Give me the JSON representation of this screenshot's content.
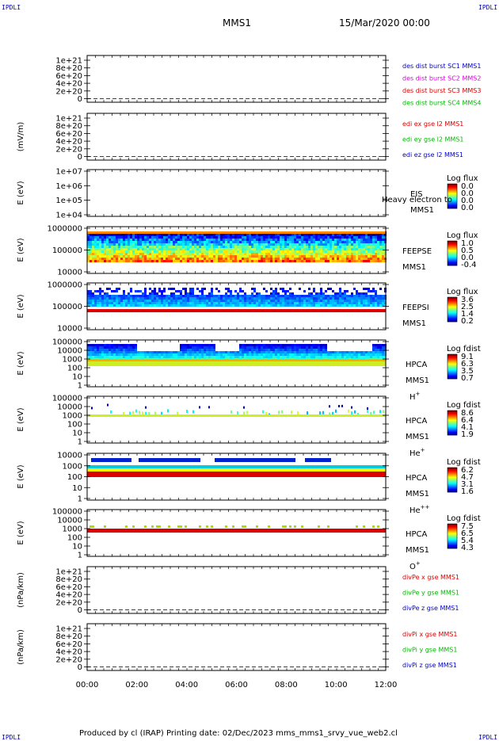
{
  "corner_label": "IPDLI",
  "header": {
    "probe": "MMS1",
    "datetime": "15/Mar/2020 00:00"
  },
  "footer": "Produced by cl (IRAP)    Printing date: 02/Dec/2023    mms_mms1_srvy_vue_web2.cl",
  "colors": {
    "red": "#dd0000",
    "green": "#00bb00",
    "blue": "#0000cc",
    "magenta": "#dd00dd"
  },
  "x_axis": {
    "ticks": [
      "00:00",
      "02:00",
      "04:00",
      "06:00",
      "08:00",
      "10:00",
      "12:00"
    ]
  },
  "chart_data": [
    {
      "type": "line",
      "ylabel": "",
      "yticks": [
        "1e+21",
        "8e+20",
        "6e+20",
        "4e+20",
        "2e+20",
        "0"
      ],
      "legend": [
        {
          "text": "des dist burst SC1 MMS1",
          "color": "#0000cc"
        },
        {
          "text": "des dist burst SC2 MMS2",
          "color": "#dd00dd"
        },
        {
          "text": "des dist burst SC3 MMS3",
          "color": "#dd0000"
        },
        {
          "text": "des dist burst SC4 MMS4",
          "color": "#00bb00"
        }
      ]
    },
    {
      "type": "line",
      "ylabel": "(mV/m)",
      "yticks": [
        "1e+21",
        "8e+20",
        "6e+20",
        "4e+20",
        "2e+20",
        "0"
      ],
      "legend": [
        {
          "text": "edi ex gse l2 MMS1",
          "color": "#dd0000"
        },
        {
          "text": "edi ey gse l2 MMS1",
          "color": "#00bb00"
        },
        {
          "text": "edi ez gse l2 MMS1",
          "color": "#0000cc"
        }
      ]
    },
    {
      "type": "heatmap",
      "ylabel": "E (eV)",
      "yticks": [
        "1e+07",
        "1e+06",
        "1e+05",
        "1e+04"
      ],
      "side_labels": [
        "EIS",
        "MMS1"
      ],
      "overlay_text": "Heavy electron to",
      "colorbar_title": "Log flux",
      "colorbar_ticks": [
        "0.0",
        "0.0",
        "0.0",
        "0.0"
      ],
      "pattern": "empty"
    },
    {
      "type": "heatmap",
      "ylabel": "E (eV)",
      "yticks": [
        "1000000",
        "100000",
        "10000"
      ],
      "side_labels": [
        "FEEPSE",
        "MMS1"
      ],
      "colorbar_title": "Log flux",
      "colorbar_ticks": [
        "1.0",
        "0.5",
        "0.0",
        "-0.4"
      ],
      "pattern": "feepse"
    },
    {
      "type": "heatmap",
      "ylabel": "E (eV)",
      "yticks": [
        "1000000",
        "100000",
        "10000"
      ],
      "side_labels": [
        "FEEPSI",
        "MMS1"
      ],
      "colorbar_title": "Log flux",
      "colorbar_ticks": [
        "3.6",
        "2.5",
        "1.4",
        "0.2"
      ],
      "pattern": "feepsi"
    },
    {
      "type": "heatmap",
      "ylabel": "E (eV)",
      "yticks": [
        "100000",
        "10000",
        "1000",
        "100",
        "10",
        "1"
      ],
      "side_labels": [
        "HPCA",
        "MMS1"
      ],
      "species": "H",
      "species_sup": "+",
      "colorbar_title": "Log fdist",
      "colorbar_ticks": [
        "9.1",
        "6.3",
        "3.5",
        "0.7"
      ],
      "pattern": "hplus"
    },
    {
      "type": "heatmap",
      "ylabel": "E (eV)",
      "yticks": [
        "100000",
        "10000",
        "1000",
        "100",
        "10",
        "1"
      ],
      "side_labels": [
        "HPCA",
        "MMS1"
      ],
      "species": "He",
      "species_sup": "+",
      "colorbar_title": "Log fdist",
      "colorbar_ticks": [
        "8.6",
        "6.4",
        "4.1",
        "1.9"
      ],
      "pattern": "heplus"
    },
    {
      "type": "heatmap",
      "ylabel": "E (eV)",
      "yticks": [
        "10000",
        "1000",
        "100",
        "10",
        "1"
      ],
      "side_labels": [
        "HPCA",
        "MMS1"
      ],
      "species": "He",
      "species_sup": "++",
      "colorbar_title": "Log fdist",
      "colorbar_ticks": [
        "6.2",
        "4.7",
        "3.1",
        "1.6"
      ],
      "pattern": "heplusplus"
    },
    {
      "type": "heatmap",
      "ylabel": "E (eV)",
      "yticks": [
        "100000",
        "10000",
        "1000",
        "100",
        "10",
        "1"
      ],
      "side_labels": [
        "HPCA",
        "MMS1"
      ],
      "species": "O",
      "species_sup": "+",
      "colorbar_title": "Log fdist",
      "colorbar_ticks": [
        "7.5",
        "6.5",
        "5.4",
        "4.3"
      ],
      "pattern": "oplus"
    },
    {
      "type": "line",
      "ylabel": "(nPa/km)",
      "yticks": [
        "1e+21",
        "8e+20",
        "6e+20",
        "4e+20",
        "2e+20",
        "0"
      ],
      "legend": [
        {
          "text": "divPe x gse MMS1",
          "color": "#dd0000"
        },
        {
          "text": "divPe y gse MMS1",
          "color": "#00bb00"
        },
        {
          "text": "divPe z gse MMS1",
          "color": "#0000cc"
        }
      ]
    },
    {
      "type": "line",
      "ylabel": "(nPa/km)",
      "yticks": [
        "1e+21",
        "8e+20",
        "6e+20",
        "4e+20",
        "2e+20",
        "0"
      ],
      "legend": [
        {
          "text": "divPi x gse MMS1",
          "color": "#dd0000"
        },
        {
          "text": "divPi y gse MMS1",
          "color": "#00bb00"
        },
        {
          "text": "divPi z gse MMS1",
          "color": "#0000cc"
        }
      ]
    }
  ]
}
